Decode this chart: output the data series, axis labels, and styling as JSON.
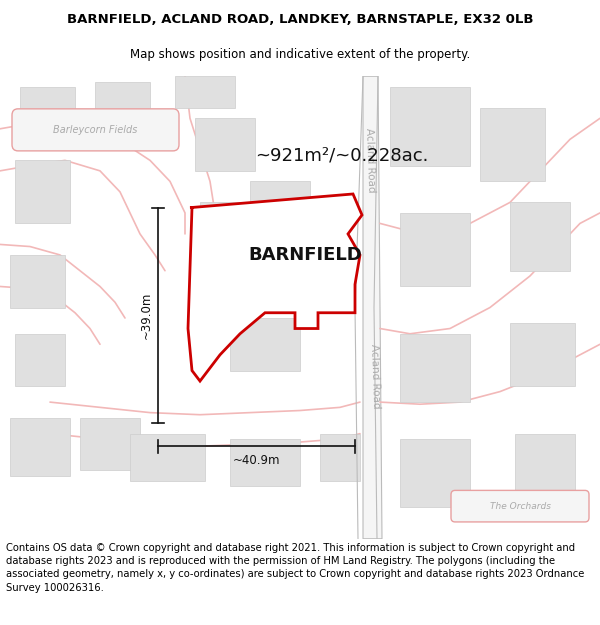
{
  "title_line1": "BARNFIELD, ACLAND ROAD, LANDKEY, BARNSTAPLE, EX32 0LB",
  "title_line2": "Map shows position and indicative extent of the property.",
  "area_label": "~921m²/~0.228ac.",
  "property_name": "BARNFIELD",
  "dim_vertical": "~39.0m",
  "dim_horizontal": "~40.9m",
  "footer_text": "Contains OS data © Crown copyright and database right 2021. This information is subject to Crown copyright and database rights 2023 and is reproduced with the permission of HM Land Registry. The polygons (including the associated geometry, namely x, y co-ordinates) are subject to Crown copyright and database rights 2023 Ordnance Survey 100026316.",
  "map_bg": "#ffffff",
  "road_pink": "#f2b8b8",
  "road_pink2": "#e8a0a0",
  "road_gray": "#bbbbbb",
  "road_gray_text": "#aaaaaa",
  "building_fill": "#e0e0e0",
  "building_edge": "#cccccc",
  "property_fill": "#ffffff",
  "property_edge": "#cc0000",
  "dim_color": "#111111",
  "label_gray": "#aaaaaa",
  "area_color": "#111111",
  "prop_name_color": "#111111",
  "barley_label": "#aaaaaa",
  "orchards_label": "#aaaaaa",
  "title_fontsize": 9.5,
  "subtitle_fontsize": 8.5,
  "footer_fontsize": 7.2
}
